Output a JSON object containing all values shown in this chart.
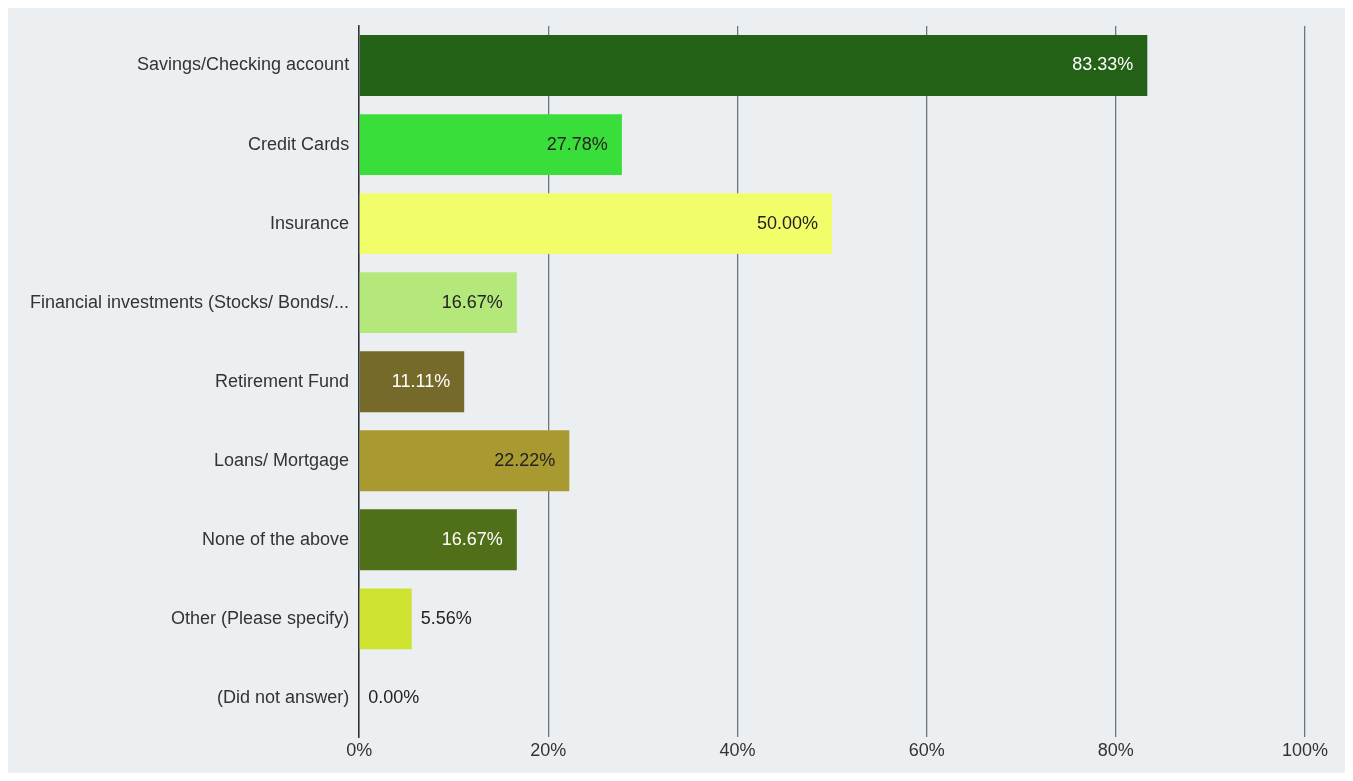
{
  "chart_data": {
    "type": "bar",
    "orientation": "horizontal",
    "categories": [
      "Savings/Checking account",
      "Credit Cards",
      "Insurance",
      "Financial investments (Stocks/ Bonds/...",
      "Retirement Fund",
      "Loans/ Mortgage",
      "None of the above",
      "Other (Please specify)",
      "(Did not answer)"
    ],
    "values": [
      83.33,
      27.78,
      50.0,
      16.67,
      11.11,
      22.22,
      16.67,
      5.56,
      0.0
    ],
    "colors": [
      "#236116",
      "#3ade3a",
      "#f2fd6a",
      "#b5e87a",
      "#756a2a",
      "#a89a30",
      "#4f6f19",
      "#cde32f",
      "#888888"
    ],
    "value_labels": [
      "83.33%",
      "27.78%",
      "50.00%",
      "16.67%",
      "11.11%",
      "22.22%",
      "16.67%",
      "5.56%",
      "0.00%"
    ],
    "xlim": [
      0,
      100
    ],
    "xticks": [
      {
        "value": 0,
        "label": "0%"
      },
      {
        "value": 20,
        "label": "20%"
      },
      {
        "value": 40,
        "label": "40%"
      },
      {
        "value": 60,
        "label": "60%"
      },
      {
        "value": 80,
        "label": "80%"
      },
      {
        "value": 100,
        "label": "100%"
      }
    ],
    "grid": "x",
    "legend": false
  }
}
